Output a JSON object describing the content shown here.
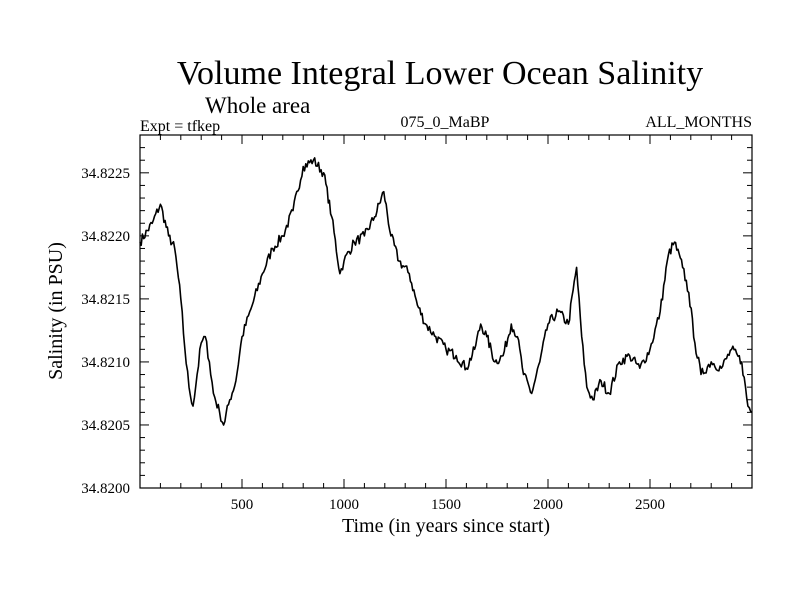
{
  "chart_data": {
    "type": "line",
    "title": "Volume Integral Lower Ocean Salinity",
    "subtitle": "Whole area",
    "expt_label": "Expt = tfkep",
    "run_label": "075_0_MaBP",
    "months_label": "ALL_MONTHS",
    "xlabel": "Time (in years since start)",
    "ylabel": "Salinity (in PSU)",
    "xlim": [
      0,
      3000
    ],
    "ylim": [
      34.82,
      34.8228
    ],
    "xticks": [
      500,
      1000,
      1500,
      2000,
      2500
    ],
    "yticks": [
      "34.8200",
      "34.8205",
      "34.8210",
      "34.8215",
      "34.8220",
      "34.8225"
    ],
    "grid": false,
    "series_color": "#000000",
    "series": [
      {
        "points": [
          [
            0,
            34.82195
          ],
          [
            60,
            34.8221
          ],
          [
            100,
            34.82225
          ],
          [
            140,
            34.822
          ],
          [
            170,
            34.8219
          ],
          [
            200,
            34.8215
          ],
          [
            220,
            34.8211
          ],
          [
            240,
            34.8208
          ],
          [
            260,
            34.82065
          ],
          [
            280,
            34.8209
          ],
          [
            300,
            34.82115
          ],
          [
            320,
            34.8212
          ],
          [
            340,
            34.821
          ],
          [
            360,
            34.82075
          ],
          [
            390,
            34.8206
          ],
          [
            410,
            34.8205
          ],
          [
            440,
            34.8207
          ],
          [
            470,
            34.82085
          ],
          [
            500,
            34.8212
          ],
          [
            550,
            34.82145
          ],
          [
            600,
            34.8217
          ],
          [
            650,
            34.8219
          ],
          [
            700,
            34.822
          ],
          [
            750,
            34.8222
          ],
          [
            800,
            34.82255
          ],
          [
            850,
            34.8226
          ],
          [
            900,
            34.8225
          ],
          [
            940,
            34.82215
          ],
          [
            980,
            34.8217
          ],
          [
            1000,
            34.8218
          ],
          [
            1050,
            34.82195
          ],
          [
            1100,
            34.822
          ],
          [
            1150,
            34.82215
          ],
          [
            1195,
            34.82235
          ],
          [
            1230,
            34.822
          ],
          [
            1270,
            34.8218
          ],
          [
            1320,
            34.8217
          ],
          [
            1360,
            34.82145
          ],
          [
            1400,
            34.8213
          ],
          [
            1450,
            34.8212
          ],
          [
            1500,
            34.8211
          ],
          [
            1550,
            34.82105
          ],
          [
            1600,
            34.82095
          ],
          [
            1640,
            34.8211
          ],
          [
            1670,
            34.8213
          ],
          [
            1700,
            34.8212
          ],
          [
            1740,
            34.821
          ],
          [
            1780,
            34.82105
          ],
          [
            1820,
            34.8213
          ],
          [
            1850,
            34.8212
          ],
          [
            1880,
            34.8209
          ],
          [
            1920,
            34.82075
          ],
          [
            1960,
            34.821
          ],
          [
            2000,
            34.8213
          ],
          [
            2050,
            34.8214
          ],
          [
            2100,
            34.8213
          ],
          [
            2140,
            34.82175
          ],
          [
            2165,
            34.8212
          ],
          [
            2190,
            34.8208
          ],
          [
            2220,
            34.8207
          ],
          [
            2260,
            34.82085
          ],
          [
            2300,
            34.82075
          ],
          [
            2350,
            34.821
          ],
          [
            2400,
            34.82105
          ],
          [
            2450,
            34.82095
          ],
          [
            2500,
            34.8211
          ],
          [
            2550,
            34.8214
          ],
          [
            2590,
            34.82185
          ],
          [
            2620,
            34.82195
          ],
          [
            2660,
            34.82175
          ],
          [
            2690,
            34.82155
          ],
          [
            2720,
            34.82115
          ],
          [
            2750,
            34.8209
          ],
          [
            2800,
            34.821
          ],
          [
            2850,
            34.82095
          ],
          [
            2900,
            34.8211
          ],
          [
            2950,
            34.821
          ],
          [
            2980,
            34.82065
          ],
          [
            3000,
            34.8206
          ]
        ]
      }
    ]
  }
}
